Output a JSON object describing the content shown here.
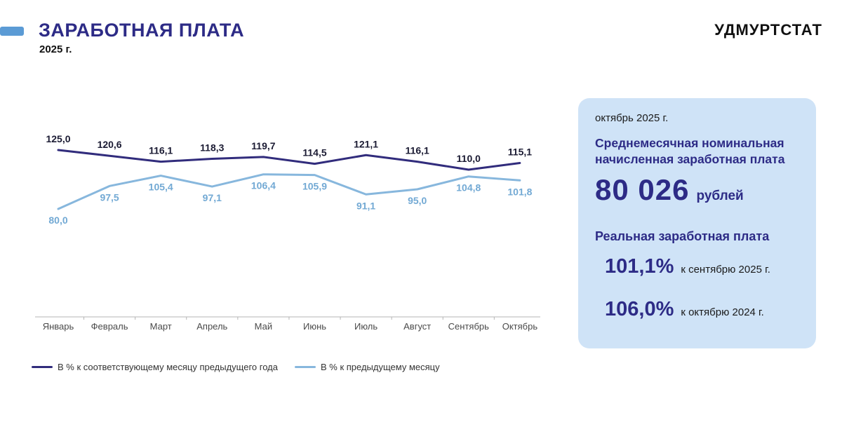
{
  "header": {
    "title": "ЗАРАБОТНАЯ ПЛАТА",
    "subtitle": "2025 г.",
    "brand": "УДМУРТСТАТ"
  },
  "colors": {
    "accent_bar": "#5b9bd5",
    "title_navy": "#2d2b86",
    "card_background": "#cfe3f7",
    "series_dark": "#312c7c",
    "series_light": "#87b7dd"
  },
  "chart_data": {
    "type": "line",
    "title": "",
    "xlabel": "",
    "ylabel": "",
    "categories": [
      "Январь",
      "Февраль",
      "Март",
      "Апрель",
      "Май",
      "Июнь",
      "Июль",
      "Август",
      "Сентябрь",
      "Октябрь"
    ],
    "series": [
      {
        "name": "В % к соответствующему месяцу предыдущего года",
        "color": "#312c7c",
        "values": [
          125.0,
          120.6,
          116.1,
          118.3,
          119.7,
          114.5,
          121.1,
          116.1,
          110.0,
          115.1
        ]
      },
      {
        "name": "В % к предыдущему месяцу",
        "color": "#87b7dd",
        "values": [
          80.0,
          97.5,
          105.4,
          97.1,
          106.4,
          105.9,
          91.1,
          95.0,
          104.8,
          101.8
        ]
      }
    ],
    "ylim": [
      80,
      125
    ],
    "grid": false,
    "legend_position": "bottom",
    "value_format": "comma-decimal-1"
  },
  "info_card": {
    "period": "октябрь 2025 г.",
    "nominal_title": "Среднемесячная номинальная начисленная заработная плата",
    "nominal_value": "80 026",
    "nominal_unit": "рублей",
    "real_title": "Реальная заработная плата",
    "real_items": [
      {
        "value": "101,1%",
        "label": "к сентябрю 2025 г."
      },
      {
        "value": "106,0%",
        "label": "к октябрю 2024 г."
      }
    ]
  }
}
